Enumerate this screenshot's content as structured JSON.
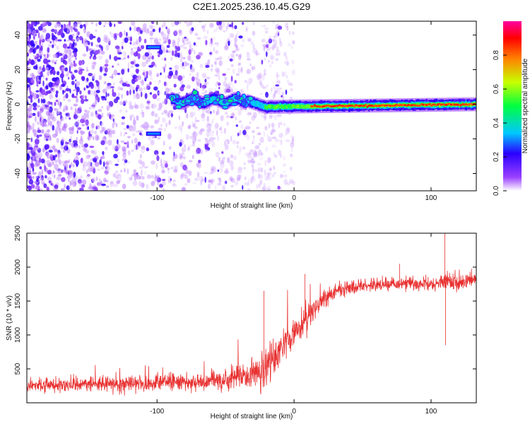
{
  "title": "C2E1.2025.236.10.45.G29",
  "chart_data": [
    {
      "type": "heatmap",
      "xlabel": "Height of straight line (km)",
      "ylabel": "Frequency (Hz)",
      "xlim": [
        -195,
        133
      ],
      "ylim": [
        -50,
        48
      ],
      "xticks": [
        -100,
        0,
        100
      ],
      "yticks": [
        -40,
        -20,
        0,
        20,
        40
      ],
      "colorbar": {
        "label": "Normalized spectral amplitude",
        "range": [
          0,
          1
        ],
        "ticks": [
          0.0,
          0.2,
          0.4,
          0.6,
          0.8
        ],
        "tick_labels": [
          "0.0",
          "0.2",
          "0.4",
          "0.6",
          "0.8"
        ],
        "colormap": [
          "#ffffff",
          "#6e00ff",
          "#0000ff",
          "#00c8ff",
          "#00ff40",
          "#c8ff00",
          "#ff8000",
          "#ff0000",
          "#ff00a0"
        ]
      },
      "features": {
        "scatter_region_x": [
          -195,
          -20
        ],
        "carrier_x": [
          -90,
          133
        ],
        "carrier_freq_start": 2,
        "carrier_freq_end": 0,
        "sidebands": [
          {
            "x": [
              -108,
              -97
            ],
            "freq": 33
          },
          {
            "x": [
              -108,
              -97
            ],
            "freq": -17
          }
        ]
      }
    },
    {
      "type": "line",
      "xlabel": "Height of straight line (km)",
      "ylabel": "SNR (10 * v/v)",
      "xlim": [
        -195,
        133
      ],
      "ylim": [
        0,
        2500
      ],
      "xticks": [
        -100,
        0,
        100
      ],
      "yticks": [
        500,
        1000,
        1500,
        2000,
        2500
      ],
      "color": "#e83030",
      "profile_x": [
        -195,
        -150,
        -100,
        -70,
        -50,
        -30,
        -20,
        -10,
        0,
        10,
        20,
        30,
        50,
        80,
        110,
        133
      ],
      "profile_mean": [
        260,
        275,
        290,
        300,
        340,
        420,
        560,
        800,
        1000,
        1250,
        1500,
        1650,
        1720,
        1760,
        1780,
        1800
      ],
      "profile_noise": [
        130,
        140,
        150,
        160,
        220,
        320,
        380,
        360,
        300,
        250,
        190,
        150,
        130,
        120,
        150,
        140
      ],
      "spikes": [
        {
          "x": 110,
          "y": 2500
        },
        {
          "x": 110.5,
          "y": 850
        },
        {
          "x": 77,
          "y": 2050
        },
        {
          "x": -22,
          "y": 1650
        },
        {
          "x": 8,
          "y": 1900
        }
      ]
    }
  ]
}
